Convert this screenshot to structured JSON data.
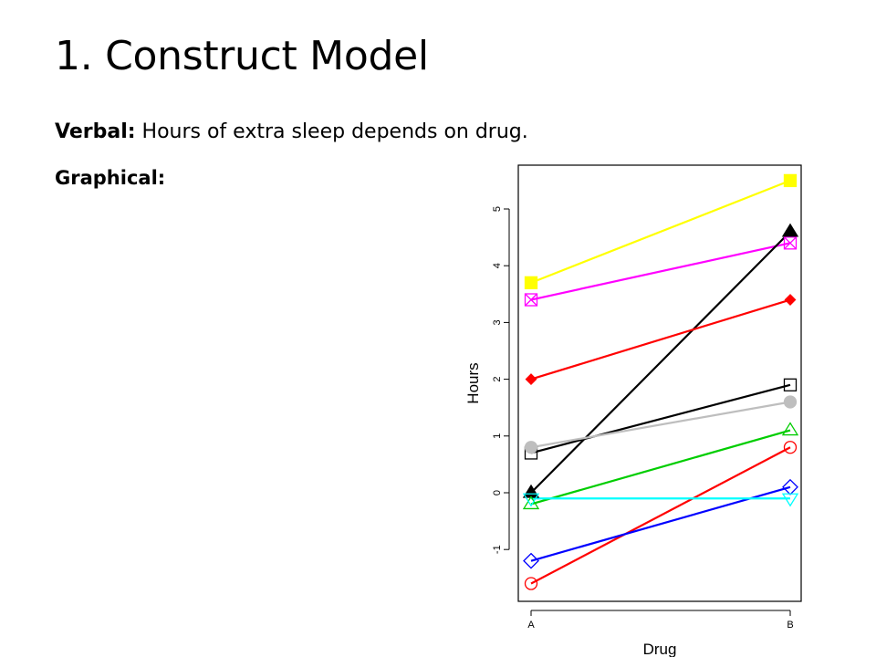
{
  "slide": {
    "title": "1. Construct Model",
    "verbal_label": "Verbal:",
    "verbal_text": " Hours of extra sleep depends on drug.",
    "graphical_label": "Graphical:"
  },
  "chart_data": {
    "type": "line",
    "categories": [
      "A",
      "B"
    ],
    "xlabel": "Drug",
    "ylabel": "Hours",
    "yticks": [
      "-1",
      "0",
      "1",
      "2",
      "3",
      "4",
      "5"
    ],
    "ylim": [
      -1.9,
      5.8
    ],
    "grid": false,
    "legend": "none",
    "series": [
      {
        "values": [
          3.7,
          5.5
        ],
        "color": "#ffff00",
        "marker": "square-filled"
      },
      {
        "values": [
          3.4,
          4.4
        ],
        "color": "#ff00ff",
        "marker": "square-x"
      },
      {
        "values": [
          0.0,
          4.6
        ],
        "color": "#000000",
        "marker": "triangle-filled"
      },
      {
        "values": [
          2.0,
          3.4
        ],
        "color": "#ff0000",
        "marker": "diamond-filled"
      },
      {
        "values": [
          0.7,
          1.9
        ],
        "color": "#000000",
        "marker": "square-open"
      },
      {
        "values": [
          0.8,
          1.6
        ],
        "color": "#bebebe",
        "marker": "circle-filled"
      },
      {
        "values": [
          -0.2,
          1.1
        ],
        "color": "#00cd00",
        "marker": "triangle-open"
      },
      {
        "values": [
          -1.6,
          0.8
        ],
        "color": "#ff0000",
        "marker": "circle-open"
      },
      {
        "values": [
          -1.2,
          0.1
        ],
        "color": "#0000ff",
        "marker": "diamond-open"
      },
      {
        "values": [
          -0.1,
          -0.1
        ],
        "color": "#00ffff",
        "marker": "triangle-down-open"
      }
    ]
  }
}
